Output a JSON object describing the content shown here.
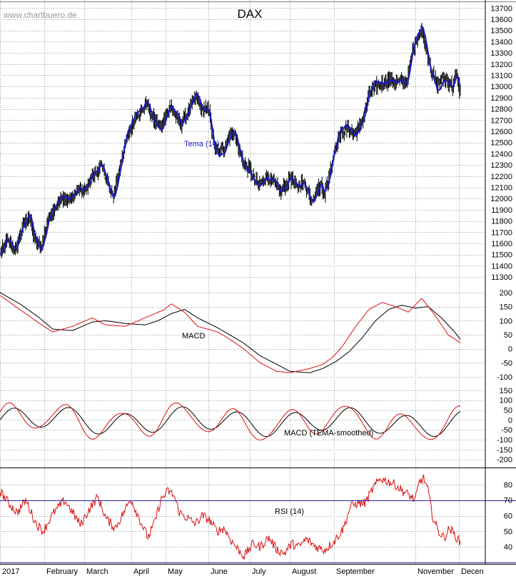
{
  "chart_data": {
    "title": "DAX",
    "watermark": "www.chartbuero.de",
    "grid": true,
    "x_axis": {
      "labels": [
        "2017",
        "February",
        "March",
        "April",
        "May",
        "June",
        "July",
        "August",
        "September",
        "November",
        "Decen"
      ],
      "positions": [
        0,
        0.5,
        1.0,
        1.5,
        2.0,
        2.5,
        3.0,
        3.5,
        4.0,
        5.0,
        5.5
      ],
      "note": "positions in index units of the tick sequence"
    },
    "panels": [
      {
        "id": "price",
        "type": "ohlc",
        "yticks": [
          11300,
          11400,
          11500,
          11600,
          11700,
          11800,
          11900,
          12000,
          12100,
          12200,
          12300,
          12400,
          12500,
          12600,
          12700,
          12800,
          12900,
          13000,
          13100,
          13200,
          13300,
          13400,
          13500,
          13600,
          13700
        ],
        "ylim": [
          11250,
          13740
        ],
        "series": [
          {
            "label": "Tema (14)",
            "color": "#1a1acc",
            "key": "tema"
          }
        ]
      },
      {
        "id": "macd",
        "type": "line",
        "label": "MACD",
        "yticks": [
          200,
          150,
          100,
          50,
          0,
          -50,
          -100
        ],
        "ylim": [
          -125,
          225
        ],
        "colors": {
          "macd": "#000000",
          "signal": "#dd1111"
        }
      },
      {
        "id": "macd_tema",
        "type": "line",
        "label": "MACD (TEMA-smoothed)",
        "yticks": [
          150,
          100,
          50,
          0,
          -50,
          -100,
          -150,
          -200
        ],
        "ylim": [
          -230,
          175
        ],
        "colors": {
          "macd": "#000000",
          "signal": "#dd1111"
        }
      },
      {
        "id": "rsi",
        "type": "line",
        "label": "RSI (14)",
        "yticks": [
          80,
          70,
          60,
          50,
          40
        ],
        "ylim": [
          30,
          90
        ],
        "levels": [
          70,
          30
        ],
        "colors": {
          "rsi": "#dd1111",
          "level": "#2222aa"
        }
      }
    ],
    "price_waypoints": [
      [
        0,
        11500
      ],
      [
        8,
        11620
      ],
      [
        14,
        11580
      ],
      [
        18,
        11520
      ],
      [
        22,
        11660
      ],
      [
        28,
        11760
      ],
      [
        34,
        11850
      ],
      [
        40,
        11640
      ],
      [
        44,
        11600
      ],
      [
        48,
        11570
      ],
      [
        56,
        11800
      ],
      [
        62,
        11900
      ],
      [
        68,
        11950
      ],
      [
        74,
        12000
      ],
      [
        80,
        11980
      ],
      [
        86,
        12030
      ],
      [
        92,
        12080
      ],
      [
        98,
        12060
      ],
      [
        104,
        12150
      ],
      [
        108,
        12200
      ],
      [
        112,
        12230
      ],
      [
        118,
        12280
      ],
      [
        124,
        12200
      ],
      [
        128,
        12090
      ],
      [
        132,
        12010
      ],
      [
        138,
        12200
      ],
      [
        144,
        12420
      ],
      [
        150,
        12560
      ],
      [
        156,
        12680
      ],
      [
        160,
        12760
      ],
      [
        166,
        12780
      ],
      [
        172,
        12860
      ],
      [
        178,
        12720
      ],
      [
        184,
        12670
      ],
      [
        188,
        12620
      ],
      [
        194,
        12760
      ],
      [
        200,
        12820
      ],
      [
        206,
        12730
      ],
      [
        212,
        12670
      ],
      [
        218,
        12750
      ],
      [
        224,
        12830
      ],
      [
        230,
        12910
      ],
      [
        236,
        12790
      ],
      [
        242,
        12800
      ],
      [
        246,
        12740
      ],
      [
        250,
        12480
      ],
      [
        256,
        12420
      ],
      [
        262,
        12450
      ],
      [
        268,
        12560
      ],
      [
        274,
        12590
      ],
      [
        280,
        12420
      ],
      [
        286,
        12300
      ],
      [
        292,
        12260
      ],
      [
        298,
        12160
      ],
      [
        304,
        12120
      ],
      [
        310,
        12200
      ],
      [
        316,
        12170
      ],
      [
        322,
        12130
      ],
      [
        328,
        12050
      ],
      [
        334,
        12120
      ],
      [
        340,
        12190
      ],
      [
        346,
        12100
      ],
      [
        352,
        12140
      ],
      [
        358,
        12120
      ],
      [
        364,
        11990
      ],
      [
        370,
        12060
      ],
      [
        376,
        12130
      ],
      [
        380,
        12040
      ],
      [
        384,
        12150
      ],
      [
        390,
        12380
      ],
      [
        396,
        12540
      ],
      [
        402,
        12600
      ],
      [
        408,
        12620
      ],
      [
        414,
        12560
      ],
      [
        420,
        12620
      ],
      [
        426,
        12740
      ],
      [
        432,
        12920
      ],
      [
        440,
        13000
      ],
      [
        448,
        13030
      ],
      [
        456,
        13060
      ],
      [
        464,
        13040
      ],
      [
        472,
        13050
      ],
      [
        476,
        13020
      ],
      [
        482,
        13280
      ],
      [
        488,
        13440
      ],
      [
        494,
        13500
      ],
      [
        500,
        13300
      ],
      [
        506,
        13120
      ],
      [
        512,
        13000
      ],
      [
        518,
        13080
      ],
      [
        524,
        13050
      ],
      [
        530,
        13000
      ],
      [
        534,
        13100
      ],
      [
        538,
        12980
      ]
    ],
    "macd_waypoints": [
      [
        0,
        190
      ],
      [
        30,
        140
      ],
      [
        60,
        90
      ],
      [
        80,
        60
      ],
      [
        110,
        80
      ],
      [
        140,
        110
      ],
      [
        160,
        85
      ],
      [
        190,
        80
      ],
      [
        220,
        110
      ],
      [
        250,
        140
      ],
      [
        260,
        160
      ],
      [
        280,
        130
      ],
      [
        300,
        80
      ],
      [
        330,
        60
      ],
      [
        345,
        40
      ],
      [
        370,
        0
      ],
      [
        395,
        -50
      ],
      [
        420,
        -80
      ],
      [
        440,
        -85
      ],
      [
        470,
        -70
      ],
      [
        490,
        -55
      ],
      [
        505,
        -30
      ],
      [
        520,
        10
      ],
      [
        540,
        80
      ],
      [
        560,
        140
      ],
      [
        580,
        165
      ],
      [
        600,
        150
      ],
      [
        620,
        130
      ],
      [
        640,
        180
      ],
      [
        660,
        120
      ],
      [
        680,
        50
      ],
      [
        700,
        20
      ]
    ],
    "macd_signal_waypoints": [
      [
        0,
        200
      ],
      [
        30,
        160
      ],
      [
        60,
        110
      ],
      [
        80,
        70
      ],
      [
        110,
        65
      ],
      [
        140,
        95
      ],
      [
        160,
        100
      ],
      [
        190,
        90
      ],
      [
        220,
        85
      ],
      [
        240,
        100
      ],
      [
        260,
        125
      ],
      [
        280,
        140
      ],
      [
        300,
        110
      ],
      [
        330,
        75
      ],
      [
        345,
        55
      ],
      [
        370,
        20
      ],
      [
        395,
        -25
      ],
      [
        420,
        -55
      ],
      [
        440,
        -80
      ],
      [
        470,
        -85
      ],
      [
        490,
        -70
      ],
      [
        510,
        -45
      ],
      [
        530,
        -10
      ],
      [
        550,
        40
      ],
      [
        570,
        100
      ],
      [
        590,
        140
      ],
      [
        610,
        155
      ],
      [
        630,
        145
      ],
      [
        650,
        150
      ],
      [
        670,
        110
      ],
      [
        690,
        60
      ],
      [
        700,
        30
      ]
    ],
    "rsi_waypoints": [
      [
        0,
        76
      ],
      [
        12,
        68
      ],
      [
        24,
        62
      ],
      [
        36,
        70
      ],
      [
        50,
        55
      ],
      [
        60,
        50
      ],
      [
        75,
        62
      ],
      [
        90,
        70
      ],
      [
        104,
        60
      ],
      [
        112,
        54
      ],
      [
        124,
        64
      ],
      [
        136,
        72
      ],
      [
        148,
        58
      ],
      [
        160,
        52
      ],
      [
        170,
        60
      ],
      [
        182,
        71
      ],
      [
        196,
        56
      ],
      [
        206,
        46
      ],
      [
        214,
        54
      ],
      [
        224,
        70
      ],
      [
        234,
        76
      ],
      [
        242,
        73
      ],
      [
        250,
        62
      ],
      [
        262,
        58
      ],
      [
        272,
        55
      ],
      [
        282,
        60
      ],
      [
        292,
        57
      ],
      [
        302,
        50
      ],
      [
        312,
        52
      ],
      [
        322,
        44
      ],
      [
        332,
        38
      ],
      [
        340,
        34
      ],
      [
        352,
        42
      ],
      [
        362,
        40
      ],
      [
        374,
        46
      ],
      [
        386,
        38
      ],
      [
        396,
        36
      ],
      [
        406,
        42
      ],
      [
        416,
        40
      ],
      [
        426,
        45
      ],
      [
        440,
        40
      ],
      [
        452,
        38
      ],
      [
        466,
        44
      ],
      [
        478,
        52
      ],
      [
        488,
        66
      ],
      [
        498,
        68
      ],
      [
        508,
        68
      ],
      [
        520,
        78
      ],
      [
        530,
        84
      ],
      [
        540,
        82
      ],
      [
        550,
        80
      ],
      [
        560,
        76
      ],
      [
        570,
        73
      ],
      [
        578,
        70
      ],
      [
        584,
        82
      ],
      [
        590,
        84
      ],
      [
        596,
        76
      ],
      [
        602,
        60
      ],
      [
        610,
        50
      ],
      [
        618,
        46
      ],
      [
        626,
        52
      ],
      [
        634,
        47
      ],
      [
        642,
        42
      ]
    ]
  }
}
